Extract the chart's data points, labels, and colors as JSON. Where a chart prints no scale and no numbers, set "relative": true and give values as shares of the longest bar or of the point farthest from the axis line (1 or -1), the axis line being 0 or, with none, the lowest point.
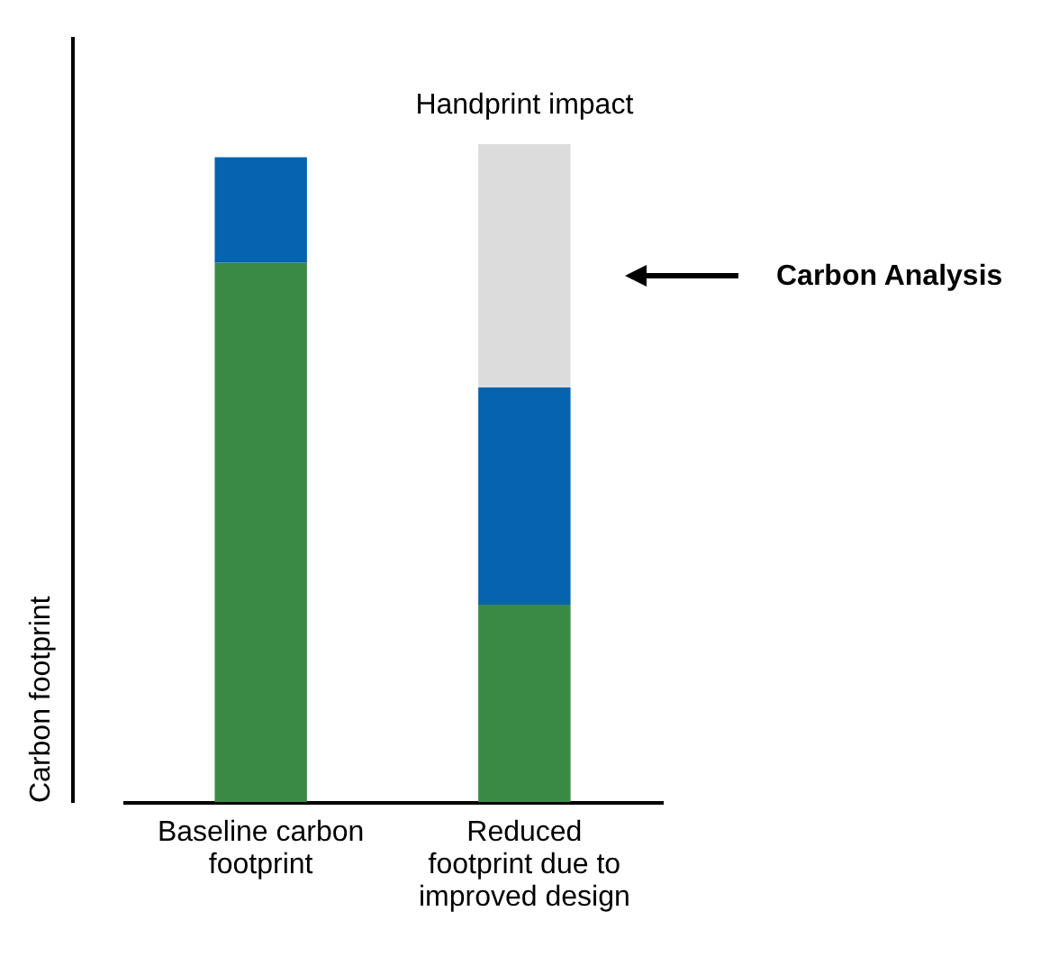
{
  "chart_data": {
    "type": "bar",
    "stacked": true,
    "relative": true,
    "ylabel": "Carbon footprint",
    "categories": [
      "Baseline carbon footprint",
      "Reduced footprint due to improved design"
    ],
    "series": [
      {
        "color": "#3a8a45",
        "values": [
          0.82,
          0.3
        ]
      },
      {
        "color": "#0563b0",
        "values": [
          0.16,
          0.33
        ]
      },
      {
        "name": "Handprint impact",
        "color": "#dcdcdc",
        "values": [
          null,
          0.37
        ]
      }
    ],
    "annotations": [
      "Carbon Analysis"
    ]
  }
}
